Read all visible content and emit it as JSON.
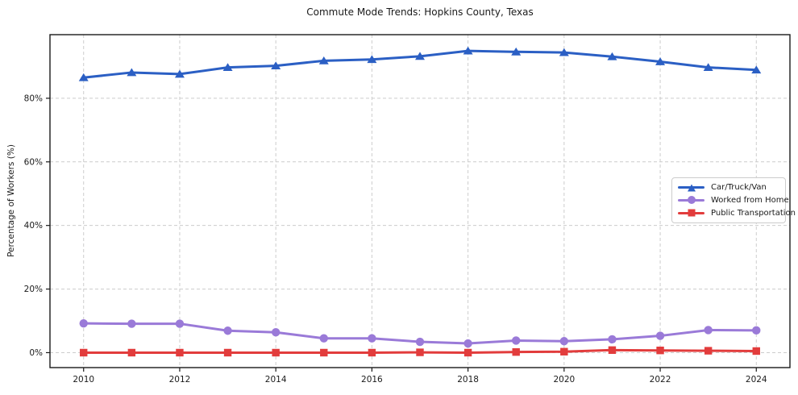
{
  "chart_data": {
    "type": "line",
    "title": "Commute Mode Trends: Hopkins County, Texas",
    "xlabel": "",
    "ylabel": "Percentage of Workers (%)",
    "x": [
      2010,
      2011,
      2012,
      2013,
      2014,
      2015,
      2016,
      2017,
      2018,
      2019,
      2020,
      2021,
      2022,
      2023,
      2024
    ],
    "x_ticks": [
      2010,
      2012,
      2014,
      2016,
      2018,
      2020,
      2022,
      2024
    ],
    "y_ticks": [
      0,
      20,
      40,
      60,
      80
    ],
    "y_tick_labels": [
      "0%",
      "20%",
      "40%",
      "60%",
      "80%"
    ],
    "xlim": [
      2009.3,
      2024.7
    ],
    "ylim": [
      -4.7,
      100
    ],
    "grid": true,
    "legend_position": "center right",
    "series": [
      {
        "name": "Car/Truck/Van",
        "marker": "triangle",
        "color": "#2b5fc4",
        "values": [
          86.5,
          88.1,
          87.6,
          89.7,
          90.2,
          91.8,
          92.2,
          93.2,
          94.9,
          94.6,
          94.4,
          93.1,
          91.5,
          89.7,
          88.9
        ]
      },
      {
        "name": "Worked from Home",
        "marker": "circle",
        "color": "#9a7ad8",
        "values": [
          9.2,
          9.1,
          9.1,
          6.9,
          6.4,
          4.5,
          4.5,
          3.4,
          2.9,
          3.8,
          3.6,
          4.2,
          5.3,
          7.1,
          7.0
        ]
      },
      {
        "name": "Public Transportation",
        "marker": "square",
        "color": "#e23c3c",
        "values": [
          0.0,
          0.0,
          0.0,
          0.0,
          0.0,
          0.0,
          0.0,
          0.1,
          0.0,
          0.2,
          0.3,
          0.8,
          0.7,
          0.6,
          0.5
        ]
      }
    ]
  },
  "colors": {
    "grid": "#cccccc",
    "axis": "#1a1a1a",
    "background": "#ffffff"
  }
}
